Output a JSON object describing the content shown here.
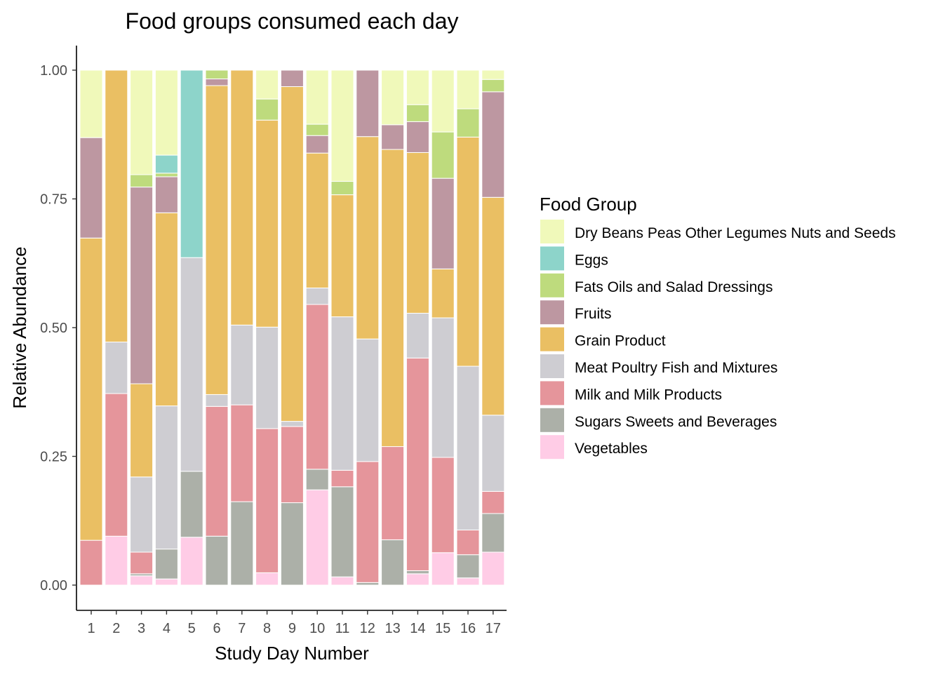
{
  "chart_data": {
    "type": "bar",
    "stacked": true,
    "title": "Food groups consumed each day",
    "xlabel": "Study Day Number",
    "ylabel": "Relative Abundance",
    "ylim": [
      0,
      1
    ],
    "yticks": [
      "0.00",
      "0.25",
      "0.50",
      "0.75",
      "1.00"
    ],
    "categories": [
      "1",
      "2",
      "3",
      "4",
      "5",
      "6",
      "7",
      "8",
      "9",
      "10",
      "11",
      "12",
      "13",
      "14",
      "15",
      "16",
      "17"
    ],
    "legend": {
      "title": "Food Group",
      "position": "right"
    },
    "series": [
      {
        "name": "Vegetables",
        "color": "#FFCCE6",
        "values": [
          0,
          0.095,
          0.018,
          0.012,
          0.093,
          0,
          0,
          0.024,
          0,
          0.185,
          0.016,
          0,
          0,
          0.022,
          0.063,
          0.014,
          0.064
        ]
      },
      {
        "name": "Sugars Sweets and Beverages",
        "color": "#ACB0A8",
        "values": [
          0,
          0,
          0.004,
          0.058,
          0.128,
          0.095,
          0.162,
          0,
          0.16,
          0.04,
          0.175,
          0.005,
          0.088,
          0.006,
          0,
          0.045,
          0.075
        ]
      },
      {
        "name": "Milk and Milk Products",
        "color": "#E5959B",
        "values": [
          0.087,
          0.277,
          0.042,
          0,
          0,
          0.252,
          0.188,
          0.28,
          0.148,
          0.32,
          0.032,
          0.235,
          0.181,
          0.413,
          0.185,
          0.048,
          0.043
        ]
      },
      {
        "name": "Meat Poultry Fish and Mixtures",
        "color": "#CECDD2",
        "values": [
          0,
          0.1,
          0.146,
          0.278,
          0.415,
          0.023,
          0.155,
          0.197,
          0.01,
          0.032,
          0.298,
          0.238,
          0,
          0.087,
          0.271,
          0.318,
          0.148
        ]
      },
      {
        "name": "Grain Product",
        "color": "#EABF63",
        "values": [
          0.587,
          0.528,
          0.181,
          0.375,
          0,
          0.6,
          0.495,
          0.402,
          0.65,
          0.262,
          0.237,
          0.393,
          0.577,
          0.312,
          0.095,
          0.445,
          0.423
        ]
      },
      {
        "name": "Fruits",
        "color": "#BD97A1",
        "values": [
          0.195,
          0,
          0.382,
          0.07,
          0,
          0.013,
          0,
          0,
          0.032,
          0.034,
          0,
          0.129,
          0.048,
          0.06,
          0.176,
          0,
          0.205
        ]
      },
      {
        "name": "Fats Oils and Salad Dressings",
        "color": "#BEDB7D",
        "values": [
          0,
          0,
          0.024,
          0.007,
          0,
          0.017,
          0,
          0.041,
          0,
          0.022,
          0.026,
          0,
          0,
          0.033,
          0.09,
          0.055,
          0.024
        ]
      },
      {
        "name": "Eggs",
        "color": "#8DD4CA",
        "values": [
          0,
          0,
          0,
          0.035,
          0.364,
          0,
          0,
          0,
          0,
          0,
          0,
          0,
          0,
          0,
          0,
          0,
          0
        ]
      },
      {
        "name": "Dry Beans Peas Other Legumes Nuts and Seeds",
        "color": "#F0F9BA",
        "values": [
          0.131,
          0,
          0.203,
          0.165,
          0,
          0,
          0,
          0.056,
          0,
          0.105,
          0.216,
          0,
          0.106,
          0.067,
          0.12,
          0.075,
          0.018
        ]
      }
    ],
    "legend_order": [
      "Dry Beans Peas Other Legumes Nuts and Seeds",
      "Eggs",
      "Fats Oils and Salad Dressings",
      "Fruits",
      "Grain Product",
      "Meat Poultry Fish and Mixtures",
      "Milk and Milk Products",
      "Sugars Sweets and Beverages",
      "Vegetables"
    ]
  }
}
